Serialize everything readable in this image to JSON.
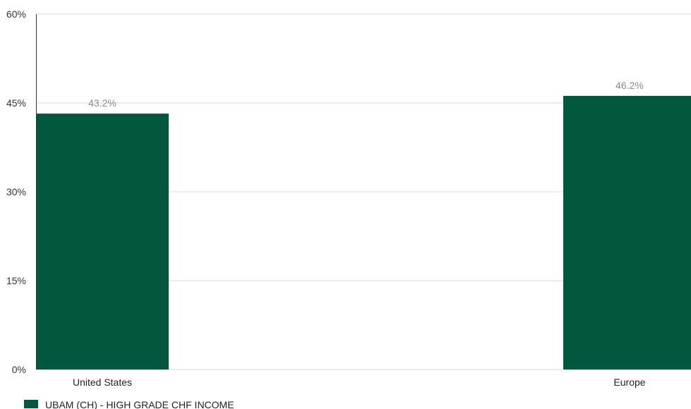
{
  "chart_data": {
    "type": "bar",
    "categories": [
      "United States",
      "Europe"
    ],
    "series": [
      {
        "name": "UBAM (CH) - HIGH GRADE CHF INCOME",
        "values": [
          43.2,
          46.2
        ],
        "value_labels": [
          "43.2%",
          "46.2%"
        ],
        "color": "#02573f"
      }
    ],
    "ylim": [
      0,
      60
    ],
    "yticks": [
      0,
      15,
      30,
      45,
      60
    ],
    "ytick_labels": [
      "0%",
      "15%",
      "30%",
      "45%",
      "60%"
    ],
    "grid": true,
    "legend_position": "bottom-left",
    "colors": {
      "bar": "#02573f",
      "grid": "#d9d9d9",
      "axis": "#333333"
    }
  }
}
